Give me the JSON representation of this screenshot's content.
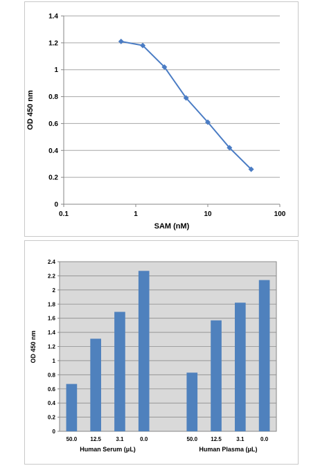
{
  "chart_data": [
    {
      "type": "line",
      "title": "",
      "xlabel": "SAM (nM)",
      "ylabel": "OD 450 nm",
      "xscale": "log",
      "xlim": [
        0.1,
        100
      ],
      "ylim": [
        0,
        1.4
      ],
      "x_ticks": [
        "0.1",
        "1",
        "10",
        "100"
      ],
      "y_ticks": [
        "0",
        "0.2",
        "0.4",
        "0.6",
        "0.8",
        "1",
        "1.2",
        "1.4"
      ],
      "grid": "horizontal",
      "series": [
        {
          "color": "#4a7cc4",
          "x": [
            0.625,
            1.25,
            2.5,
            5,
            10,
            20,
            40
          ],
          "y": [
            1.21,
            1.18,
            1.02,
            0.79,
            0.61,
            0.42,
            0.26
          ]
        }
      ]
    },
    {
      "type": "bar",
      "title": "",
      "ylabel": "OD 450 nm",
      "ylim": [
        0,
        2.4
      ],
      "y_ticks": [
        "0",
        "0.2",
        "0.4",
        "0.6",
        "0.8",
        "1",
        "1.2",
        "1.4",
        "1.6",
        "1.8",
        "2",
        "2.2",
        "2.4"
      ],
      "grid": "horizontal",
      "plot_background": "#d9d9d9",
      "bar_color": "#4f81bd",
      "groups": [
        {
          "label": "Human Serum (μL)",
          "categories": [
            "50.0",
            "12.5",
            "3.1",
            "0.0"
          ],
          "values": [
            0.67,
            1.31,
            1.69,
            2.27
          ]
        },
        {
          "label": "Human Plasma (μL)",
          "categories": [
            "50.0",
            "12.5",
            "3.1",
            "0.0"
          ],
          "values": [
            0.83,
            1.57,
            1.82,
            2.14
          ]
        }
      ]
    }
  ]
}
